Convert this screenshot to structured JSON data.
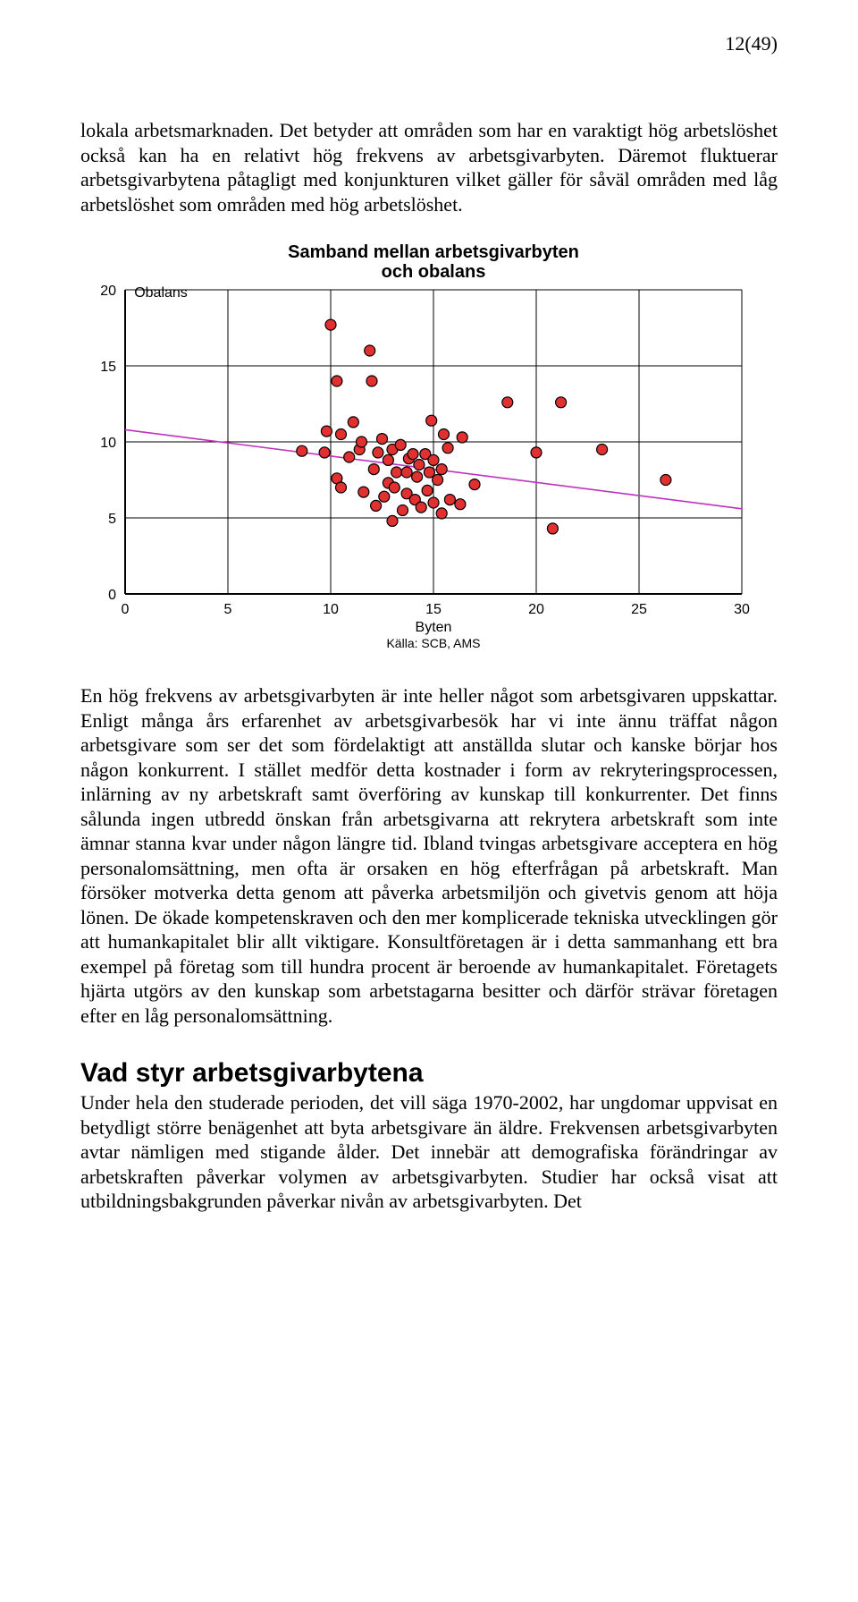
{
  "page_number": "12(49)",
  "para1": "lokala arbetsmarknaden. Det betyder att områden som har en varaktigt hög ar­betslöshet också kan ha en relativt hög frekvens av arbetsgivarbyten. Däremot fluktuerar arbetsgivarbytena påtagligt med konjunkturen vilket gäller för såväl områden med låg arbetslöshet som områden med hög arbetslöshet.",
  "para2": "En hög frekvens av arbetsgivarbyten är inte heller något som arbetsgivaren upp­skattar. Enligt många års erfarenhet av arbetsgivarbesök har vi inte ännu träffat någon arbetsgivare som ser det som fördelaktigt att anställda slutar och kanske börjar hos någon konkurrent. I stället medför detta kostnader i form av rekryte­ringsprocessen, inlärning av ny arbetskraft samt överföring av kunskap till kon­kurrenter. Det finns sålunda ingen utbredd önskan från arbetsgivarna att rekrytera arbetskraft som inte ämnar stanna kvar under någon längre tid. Ibland tvingas arbetsgivare acceptera en hög personalomsättning, men ofta är orsaken en hög efterfrågan på arbetskraft. Man försöker motverka detta genom att påverka ar­betsmiljön och givetvis genom att höja lönen. De ökade kompetenskraven och den mer komplicerade tekniska utvecklingen gör att humankapitalet blir allt vik­tigare. Konsultföretagen är i detta sammanhang ett bra exempel på företag som till hundra procent är beroende av humankapitalet. Företagets hjärta utgörs av den kunskap som arbetstagarna besitter och därför strävar företagen efter en låg personalomsättning.",
  "section_heading": "Vad styr arbetsgivarbytena",
  "para3": "Under hela den studerade perioden, det vill säga 1970-2002, har ungdomar upp­visat en betydligt större benägenhet att byta arbetsgivare än äldre. Frekvensen arbetsgivarbyten avtar nämligen med stigande ålder. Det innebär att demografiska förändringar av arbetskraften påverkar volymen av arbetsgivarbyten. Studier har också visat att utbildningsbakgrunden påverkar nivån av arbetsgivarbyten. Det",
  "chart": {
    "type": "scatter",
    "title_line1": "Samband mellan arbetsgivarbyten",
    "title_line2": "och obalans",
    "y_label": "Obalans",
    "x_label": "Byten",
    "source": "Källa: SCB, AMS",
    "xlim": [
      0,
      30
    ],
    "ylim": [
      0,
      20
    ],
    "x_ticks": [
      0,
      5,
      10,
      15,
      20,
      25,
      30
    ],
    "y_ticks": [
      0,
      5,
      10,
      15,
      20
    ],
    "grid_color": "#000000",
    "grid_width": 1,
    "axis_color": "#000000",
    "axis_width": 2,
    "background_color": "#ffffff",
    "marker_fill": "#e03030",
    "marker_stroke": "#000000",
    "marker_radius": 6,
    "marker_stroke_width": 1.2,
    "trend_color": "#c030c0",
    "trend_width": 1.6,
    "trend_y_at_x0": 10.8,
    "trend_y_at_x30": 5.6,
    "title_fontsize": 20,
    "axis_label_fontsize": 16,
    "tick_fontsize": 16,
    "source_fontsize": 14,
    "points": [
      [
        10.0,
        17.7
      ],
      [
        11.9,
        16.0
      ],
      [
        10.3,
        14.0
      ],
      [
        12.0,
        14.0
      ],
      [
        18.6,
        12.6
      ],
      [
        21.2,
        12.6
      ],
      [
        9.8,
        10.7
      ],
      [
        10.5,
        10.5
      ],
      [
        11.1,
        11.3
      ],
      [
        14.9,
        11.4
      ],
      [
        15.5,
        10.5
      ],
      [
        16.4,
        10.3
      ],
      [
        8.6,
        9.4
      ],
      [
        9.7,
        9.3
      ],
      [
        10.3,
        7.6
      ],
      [
        10.9,
        9.0
      ],
      [
        11.4,
        9.5
      ],
      [
        11.5,
        10.0
      ],
      [
        12.1,
        8.2
      ],
      [
        12.3,
        9.3
      ],
      [
        12.5,
        10.2
      ],
      [
        12.8,
        8.8
      ],
      [
        13.0,
        9.5
      ],
      [
        13.2,
        8.0
      ],
      [
        13.4,
        9.8
      ],
      [
        13.7,
        8.0
      ],
      [
        13.8,
        8.9
      ],
      [
        14.0,
        9.2
      ],
      [
        14.2,
        7.7
      ],
      [
        14.3,
        8.5
      ],
      [
        14.6,
        9.2
      ],
      [
        14.8,
        8.0
      ],
      [
        15.0,
        8.8
      ],
      [
        15.2,
        7.5
      ],
      [
        15.4,
        8.2
      ],
      [
        15.7,
        9.6
      ],
      [
        20.0,
        9.3
      ],
      [
        23.2,
        9.5
      ],
      [
        10.5,
        7.0
      ],
      [
        11.6,
        6.7
      ],
      [
        12.2,
        5.8
      ],
      [
        12.6,
        6.4
      ],
      [
        12.8,
        7.3
      ],
      [
        13.1,
        7.0
      ],
      [
        13.5,
        5.5
      ],
      [
        13.7,
        6.6
      ],
      [
        14.1,
        6.2
      ],
      [
        14.4,
        5.7
      ],
      [
        14.7,
        6.8
      ],
      [
        15.0,
        6.0
      ],
      [
        15.4,
        5.3
      ],
      [
        15.8,
        6.2
      ],
      [
        16.3,
        5.9
      ],
      [
        17.0,
        7.2
      ],
      [
        26.3,
        7.5
      ],
      [
        13.0,
        4.8
      ],
      [
        20.8,
        4.3
      ]
    ]
  }
}
